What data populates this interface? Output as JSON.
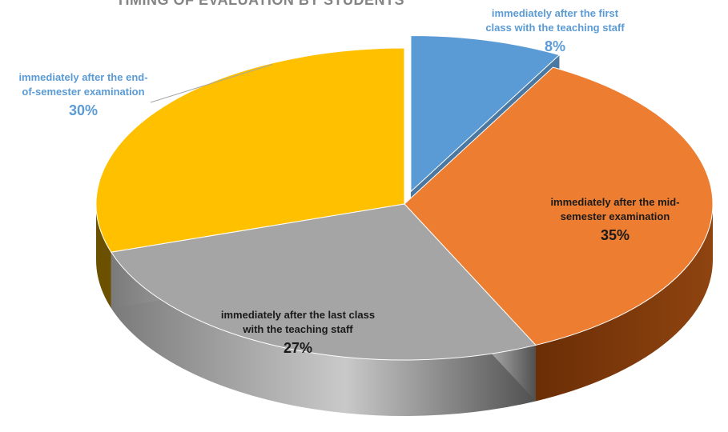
{
  "chart_data": {
    "type": "pie",
    "title": "TIMING OF EVALUATION BY STUDENTS",
    "slices": [
      {
        "label": "immediately after the first class with the teaching staff",
        "value": 8,
        "percent_label": "8%",
        "color": "#5b9bd5",
        "side_color": "#41719c",
        "exploded": true
      },
      {
        "label": "immediately after the mid-semester examination",
        "value": 35,
        "percent_label": "35%",
        "color": "#ed7d31",
        "side_color": "#843c0c",
        "exploded": false
      },
      {
        "label": "immediately after the last class with the teaching staff",
        "value": 27,
        "percent_label": "27%",
        "color": "#a5a5a5",
        "side_color": "#636363",
        "exploded": false
      },
      {
        "label": "immediately after the end-of-semester examination",
        "value": 30,
        "percent_label": "30%",
        "color": "#ffc000",
        "side_color": "#6b5000",
        "exploded": false
      }
    ],
    "label_text": {
      "first": "immediately after the first\nclass with the teaching staff",
      "mid": "immediately after the mid-\nsemester examination",
      "last": "immediately after the last class\nwith the teaching staff",
      "end": "immediately after the end-\nof-semester examination"
    },
    "legend": "none",
    "style": "3d-exploded"
  }
}
